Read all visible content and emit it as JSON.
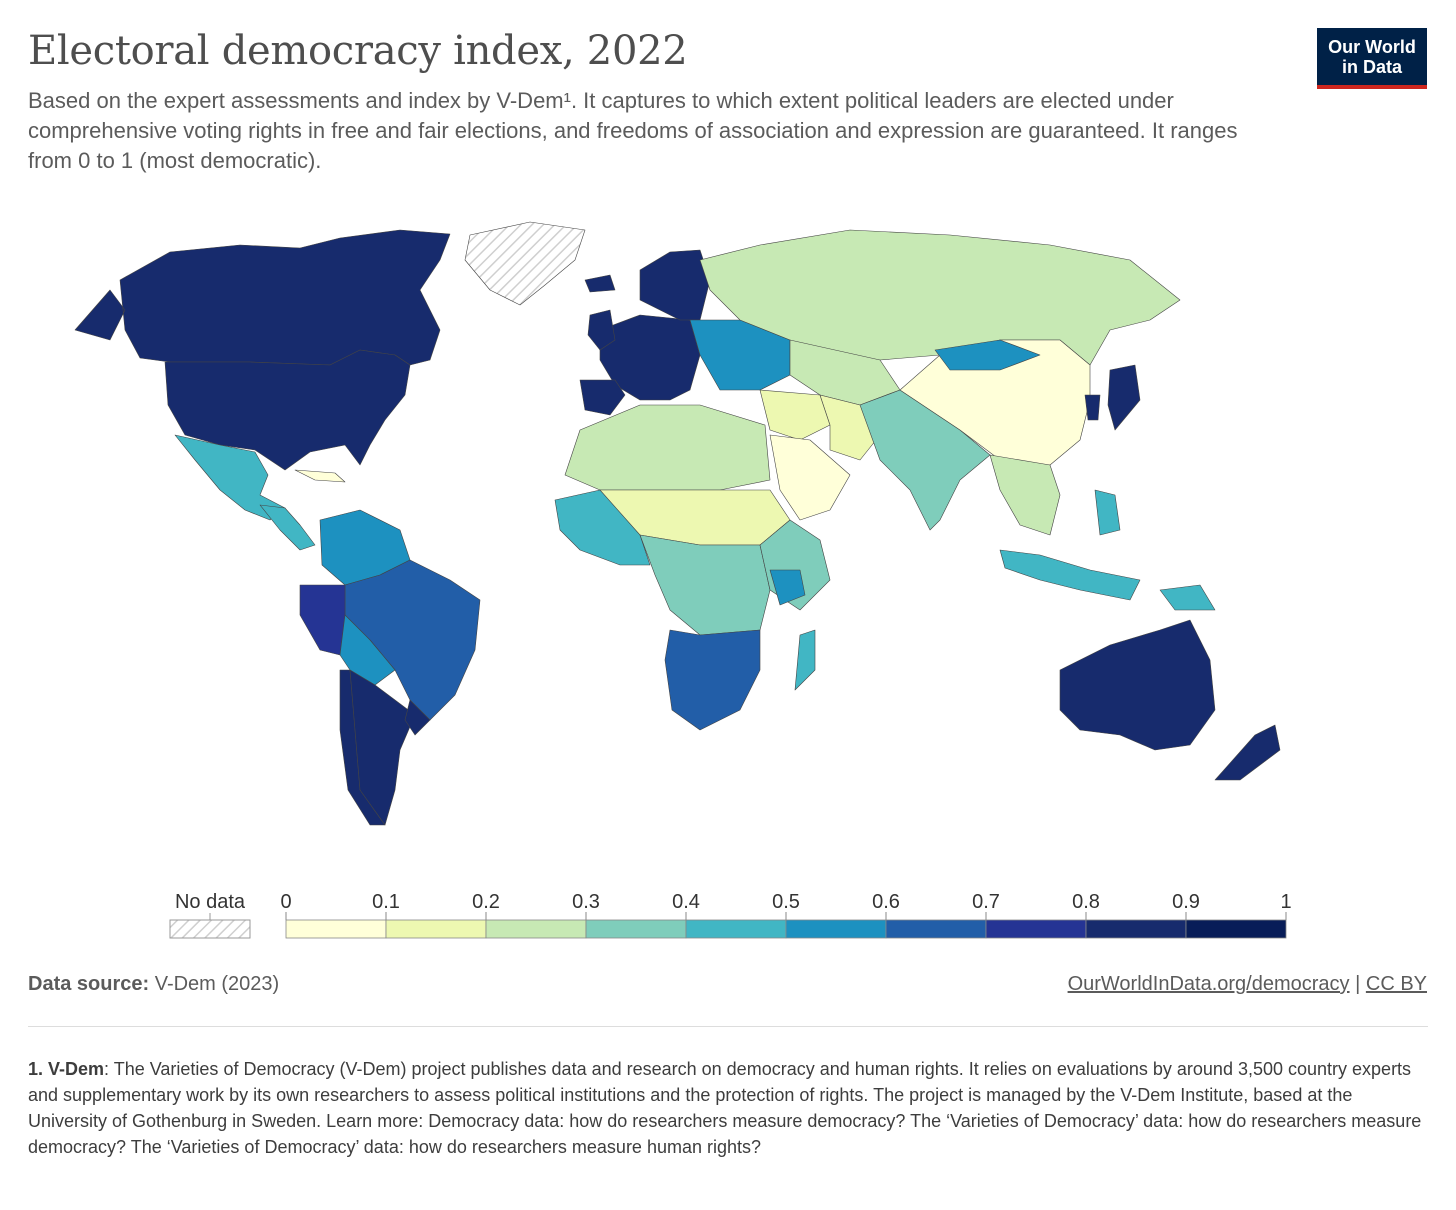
{
  "title": "Electoral democracy index, 2022",
  "subtitle": "Based on the expert assessments and index by V-Dem¹. It captures to which extent political leaders are elected under comprehensive voting rights in free and fair elections, and freedoms of association and expression are guaranteed. It ranges from 0 to 1 (most democratic).",
  "logo": {
    "line1": "Our World",
    "line2": "in Data",
    "bg": "#002147",
    "accent": "#ce261e"
  },
  "legend": {
    "no_data_label": "No data",
    "ticks": [
      "0",
      "0.1",
      "0.2",
      "0.3",
      "0.4",
      "0.5",
      "0.6",
      "0.7",
      "0.8",
      "0.9",
      "1"
    ],
    "colors": [
      "#ffffd9",
      "#edf8b1",
      "#c7e9b4",
      "#7fcdbb",
      "#41b6c4",
      "#1d91c0",
      "#225ea8",
      "#253494",
      "#172b6d",
      "#081d58"
    ]
  },
  "source": {
    "label": "Data source:",
    "value": "V-Dem (2023)"
  },
  "links": {
    "url_text": "OurWorldInData.org/democracy",
    "separator": "|",
    "license": "CC BY"
  },
  "footnote": {
    "label": "1. V-Dem",
    "text": ": The Varieties of Democracy (V-Dem) project publishes data and research on democracy and human rights. It relies on evaluations by around 3,500 country experts and supplementary work by its own researchers to assess political institutions and the protection of rights. The project is managed by the V-Dem Institute, based at the University of Gothenburg in Sweden. Learn more: Democracy data: how do researchers measure democracy? The ‘Varieties of Democracy’ data: how do researchers measure democracy? The ‘Varieties of Democracy’ data: how do researchers measure human rights?"
  },
  "map_data": [
    {
      "region": "Canada",
      "value": 0.88
    },
    {
      "region": "United States",
      "value": 0.85
    },
    {
      "region": "Greenland",
      "value": null
    },
    {
      "region": "Mexico",
      "value": 0.45
    },
    {
      "region": "Central America",
      "value": 0.45
    },
    {
      "region": "Cuba",
      "value": 0.08
    },
    {
      "region": "Colombia & Venezuela",
      "value": 0.55
    },
    {
      "region": "Brazil",
      "value": 0.62
    },
    {
      "region": "Peru",
      "value": 0.7
    },
    {
      "region": "Bolivia",
      "value": 0.55
    },
    {
      "region": "Chile",
      "value": 0.85
    },
    {
      "region": "Argentina",
      "value": 0.82
    },
    {
      "region": "Uruguay",
      "value": 0.85
    },
    {
      "region": "Western Europe",
      "value": 0.88
    },
    {
      "region": "Scandinavia",
      "value": 0.88
    },
    {
      "region": "Iceland",
      "value": 0.85
    },
    {
      "region": "United Kingdom",
      "value": 0.85
    },
    {
      "region": "Iberia",
      "value": 0.85
    },
    {
      "region": "Eastern Europe",
      "value": 0.55
    },
    {
      "region": "Russia",
      "value": 0.2
    },
    {
      "region": "Central Asia",
      "value": 0.2
    },
    {
      "region": "Middle East",
      "value": 0.1
    },
    {
      "region": "Arabian Peninsula",
      "value": 0.03
    },
    {
      "region": "Iran",
      "value": 0.15
    },
    {
      "region": "North Africa",
      "value": 0.2
    },
    {
      "region": "Sahel",
      "value": 0.15
    },
    {
      "region": "West Africa",
      "value": 0.4
    },
    {
      "region": "Central Africa",
      "value": 0.3
    },
    {
      "region": "East Africa",
      "value": 0.3
    },
    {
      "region": "Kenya",
      "value": 0.5
    },
    {
      "region": "Southern Africa",
      "value": 0.6
    },
    {
      "region": "Madagascar",
      "value": 0.4
    },
    {
      "region": "India",
      "value": 0.3
    },
    {
      "region": "China",
      "value": 0.05
    },
    {
      "region": "Mongolia",
      "value": 0.55
    },
    {
      "region": "Japan",
      "value": 0.82
    },
    {
      "region": "Korea",
      "value": 0.8
    },
    {
      "region": "Southeast Asia",
      "value": 0.2
    },
    {
      "region": "Indonesia",
      "value": 0.45
    },
    {
      "region": "Philippines",
      "value": 0.45
    },
    {
      "region": "Papua New Guinea",
      "value": 0.45
    },
    {
      "region": "Australia",
      "value": 0.88
    },
    {
      "region": "New Zealand",
      "value": 0.88
    }
  ]
}
